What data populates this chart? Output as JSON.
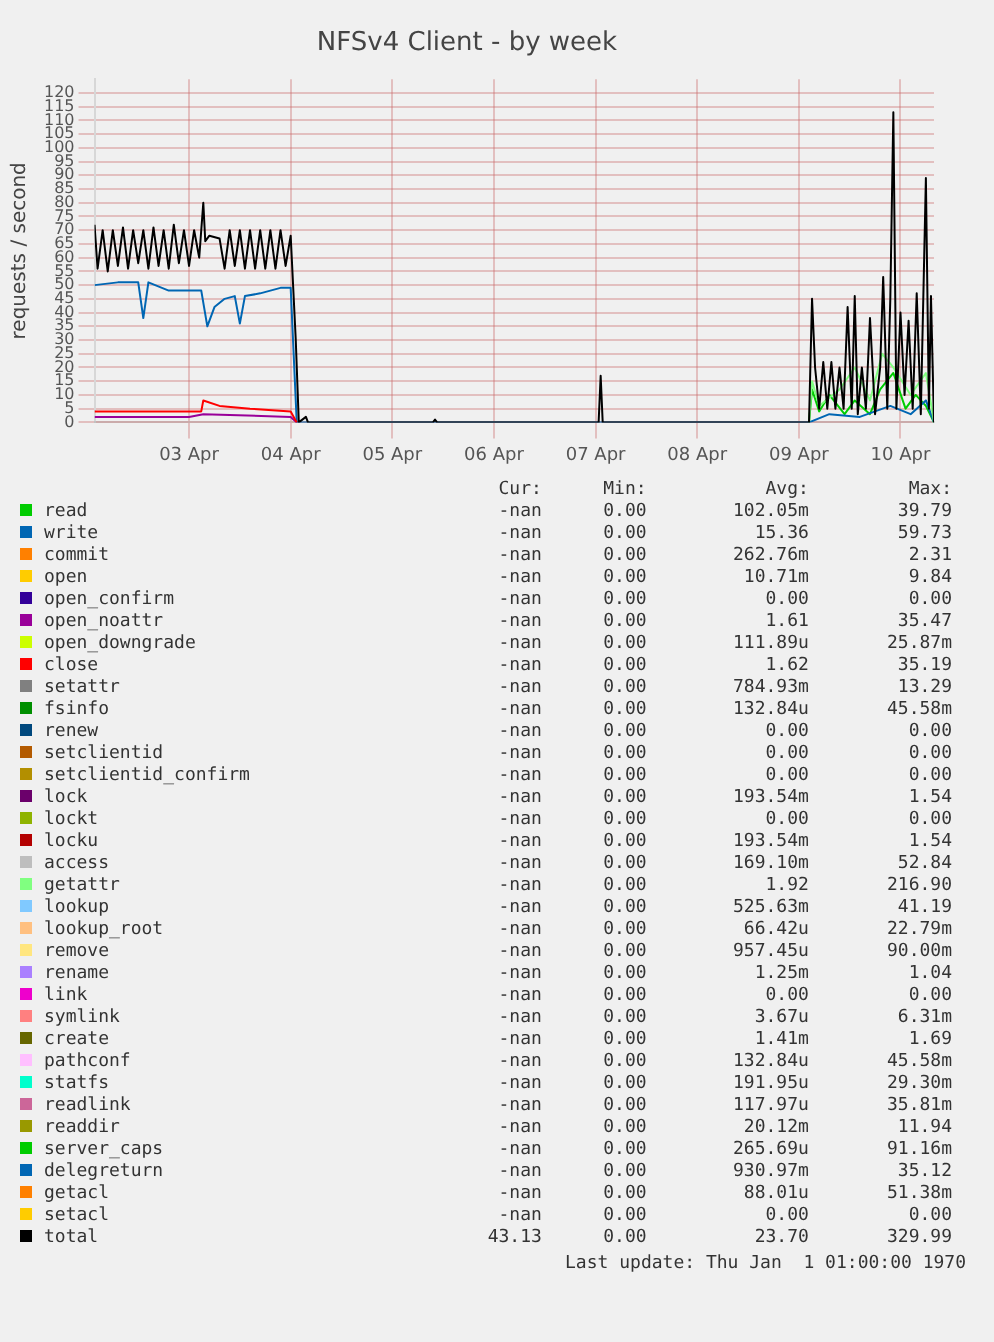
{
  "chart_data": {
    "type": "line",
    "title": "NFSv4 Client - by week",
    "ylabel": "requests / second",
    "xlim": [
      "--04-02T01:41",
      "--04-10T07:55"
    ],
    "xticks": [
      {
        "value": "--04-03",
        "label": "03 Apr"
      },
      {
        "value": "--04-04",
        "label": "04 Apr"
      },
      {
        "value": "--04-05",
        "label": "05 Apr"
      },
      {
        "value": "--04-06",
        "label": "06 Apr"
      },
      {
        "value": "--04-07",
        "label": "07 Apr"
      },
      {
        "value": "--04-08",
        "label": "08 Apr"
      },
      {
        "value": "--04-09",
        "label": "09 Apr"
      },
      {
        "value": "--04-10",
        "label": "10 Apr"
      }
    ],
    "ylim": [
      0,
      125
    ],
    "yticks": [
      0,
      5,
      10,
      15,
      20,
      25,
      30,
      35,
      40,
      45,
      50,
      55,
      60,
      65,
      70,
      75,
      80,
      85,
      90,
      95,
      100,
      105,
      110,
      115,
      120
    ],
    "grid": true,
    "legend": "bottom",
    "marker": "none",
    "line_style": "solid",
    "series": [
      {
        "name": "read",
        "color": "#00cc00",
        "x": [
          "--04-09T02:24",
          "--04-09T03:07",
          "--04-09T04:48",
          "--04-09T07:12",
          "--04-09T10:48",
          "--04-09T13:12",
          "--04-09T16:48",
          "--04-09T19:12",
          "--04-09T22:19",
          "--04-10T01:12",
          "--04-10T03:36",
          "--04-10T06:00",
          "--04-10T07:55"
        ],
        "values": [
          0,
          12,
          4,
          10,
          3,
          8,
          3,
          12,
          18,
          5,
          10,
          6,
          0
        ]
      },
      {
        "name": "write",
        "color": "#0066b3",
        "x": [
          "--04-02T01:41",
          "--04-02T07:12",
          "--04-02T12:00",
          "--04-02T13:12",
          "--04-02T14:24",
          "--04-02T19:12",
          "--04-03T00:00",
          "--04-03T02:53",
          "--04-03T04:19",
          "--04-03T06:00",
          "--04-03T08:24",
          "--04-03T10:48",
          "--04-03T12:00",
          "--04-03T13:12",
          "--04-03T16:48",
          "--04-03T21:36",
          "--04-04T00:00",
          "--04-04T01:26",
          "--04-09T02:24",
          "--04-09T07:12",
          "--04-09T14:24",
          "--04-09T21:36",
          "--04-10T02:24",
          "--04-10T06:00",
          "--04-10T07:55"
        ],
        "values": [
          50,
          51,
          51,
          38,
          51,
          48,
          48,
          48,
          35,
          42,
          45,
          46,
          36,
          46,
          47,
          49,
          49,
          0,
          0,
          3,
          2,
          6,
          3,
          8,
          0
        ]
      },
      {
        "name": "commit",
        "color": "#ff8000"
      },
      {
        "name": "open",
        "color": "#ffcc00"
      },
      {
        "name": "open_confirm",
        "color": "#330099"
      },
      {
        "name": "open_noattr",
        "color": "#990099",
        "x": [
          "--04-02T01:41",
          "--04-03T00:00",
          "--04-03T03:22",
          "--04-04T00:00",
          "--04-04T01:26"
        ],
        "values": [
          2,
          2,
          3,
          2,
          0
        ]
      },
      {
        "name": "open_downgrade",
        "color": "#ccff00"
      },
      {
        "name": "close",
        "color": "#ff0000",
        "x": [
          "--04-02T01:41",
          "--04-02T12:00",
          "--04-03T00:00",
          "--04-03T02:53",
          "--04-03T03:22",
          "--04-03T07:12",
          "--04-03T14:24",
          "--04-04T00:00",
          "--04-04T01:26"
        ],
        "values": [
          4,
          4,
          4,
          4,
          8,
          6,
          5,
          4,
          0
        ]
      },
      {
        "name": "setattr",
        "color": "#808080"
      },
      {
        "name": "fsinfo",
        "color": "#008f00"
      },
      {
        "name": "renew",
        "color": "#00487d"
      },
      {
        "name": "setclientid",
        "color": "#b35a00"
      },
      {
        "name": "setclientid_confirm",
        "color": "#b38f00"
      },
      {
        "name": "lock",
        "color": "#6b006b"
      },
      {
        "name": "lockt",
        "color": "#8fb300"
      },
      {
        "name": "locku",
        "color": "#b30000"
      },
      {
        "name": "access",
        "color": "#bebebe"
      },
      {
        "name": "getattr",
        "color": "#80ff80",
        "x": [
          "--04-09T02:24",
          "--04-09T03:07",
          "--04-09T04:48",
          "--04-09T09:36",
          "--04-09T13:12",
          "--04-09T16:48",
          "--04-09T19:41",
          "--04-09T22:19",
          "--04-10T02:24",
          "--04-10T06:00",
          "--04-10T07:55"
        ],
        "values": [
          0,
          15,
          6,
          12,
          20,
          8,
          25,
          20,
          10,
          18,
          0
        ]
      },
      {
        "name": "lookup",
        "color": "#80c9ff"
      },
      {
        "name": "lookup_root",
        "color": "#ffc080"
      },
      {
        "name": "remove",
        "color": "#ffe680"
      },
      {
        "name": "rename",
        "color": "#aa80ff"
      },
      {
        "name": "link",
        "color": "#ee00cc"
      },
      {
        "name": "symlink",
        "color": "#ff8080"
      },
      {
        "name": "create",
        "color": "#666600"
      },
      {
        "name": "pathconf",
        "color": "#ffbfff"
      },
      {
        "name": "statfs",
        "color": "#00ffcc"
      },
      {
        "name": "readlink",
        "color": "#cc6699"
      },
      {
        "name": "readdir",
        "color": "#999900"
      },
      {
        "name": "server_caps",
        "color": "#00cc00"
      },
      {
        "name": "delegreturn",
        "color": "#0066b3"
      },
      {
        "name": "getacl",
        "color": "#ff8000"
      },
      {
        "name": "setacl",
        "color": "#ffcc00"
      },
      {
        "name": "total",
        "color": "#000000",
        "x": [
          "--04-02T01:41",
          "--04-02T02:24",
          "--04-02T03:36",
          "--04-02T04:48",
          "--04-02T06:00",
          "--04-02T07:12",
          "--04-02T08:24",
          "--04-02T09:36",
          "--04-02T10:48",
          "--04-02T12:00",
          "--04-02T13:12",
          "--04-02T14:24",
          "--04-02T15:36",
          "--04-02T16:48",
          "--04-02T18:00",
          "--04-02T19:12",
          "--04-02T20:24",
          "--04-02T21:36",
          "--04-02T22:48",
          "--04-03T00:00",
          "--04-03T01:12",
          "--04-03T02:24",
          "--04-03T03:22",
          "--04-03T03:50",
          "--04-03T04:48",
          "--04-03T07:12",
          "--04-03T08:24",
          "--04-03T09:36",
          "--04-03T10:48",
          "--04-03T12:00",
          "--04-03T13:12",
          "--04-03T14:24",
          "--04-03T15:36",
          "--04-03T16:48",
          "--04-03T18:00",
          "--04-03T19:12",
          "--04-03T20:24",
          "--04-03T21:36",
          "--04-03T22:48",
          "--04-04T00:00",
          "--04-04T01:12",
          "--04-04T01:55",
          "--04-04T03:36",
          "--04-04T04:05",
          "--04-05T09:36",
          "--04-05T10:05",
          "--04-05T10:34",
          "--04-07T00:43",
          "--04-07T01:12",
          "--04-07T01:41",
          "--04-09T02:24",
          "--04-09T03:07",
          "--04-09T03:50",
          "--04-09T04:48",
          "--04-09T05:46",
          "--04-09T06:43",
          "--04-09T07:41",
          "--04-09T08:38",
          "--04-09T09:36",
          "--04-09T10:34",
          "--04-09T11:31",
          "--04-09T12:29",
          "--04-09T13:12",
          "--04-09T13:55",
          "--04-09T14:53",
          "--04-09T15:50",
          "--04-09T16:48",
          "--04-09T18:00",
          "--04-09T19:12",
          "--04-09T19:55",
          "--04-09T20:53",
          "--04-09T21:36",
          "--04-09T22:19",
          "--04-09T23:02",
          "--04-10T00:00",
          "--04-10T00:58",
          "--04-10T01:55",
          "--04-10T02:53",
          "--04-10T03:50",
          "--04-10T04:48",
          "--04-10T06:00",
          "--04-10T06:43",
          "--04-10T07:12",
          "--04-10T07:55"
        ],
        "values": [
          72,
          56,
          70,
          55,
          70,
          57,
          71,
          56,
          70,
          58,
          70,
          56,
          71,
          57,
          70,
          56,
          72,
          58,
          70,
          57,
          70,
          60,
          80,
          66,
          68,
          67,
          56,
          70,
          57,
          70,
          56,
          70,
          56,
          70,
          56,
          70,
          56,
          70,
          57,
          68,
          30,
          0,
          2,
          0,
          0,
          1,
          0,
          0,
          17,
          0,
          0,
          45,
          20,
          5,
          22,
          5,
          22,
          5,
          20,
          5,
          42,
          5,
          46,
          3,
          20,
          5,
          38,
          3,
          20,
          53,
          5,
          45,
          113,
          5,
          40,
          10,
          37,
          5,
          47,
          3,
          89,
          5,
          46,
          0
        ]
      }
    ],
    "annotations": [
      "Cur:",
      "Min:",
      "Avg:",
      "Max:",
      "-nan",
      "0.00",
      "102.05m",
      "39.79",
      "-nan",
      "0.00",
      "15.36",
      "59.73",
      "-nan",
      "0.00",
      "262.76m",
      "2.31",
      "-nan",
      "0.00",
      "10.71m",
      "9.84",
      "-nan",
      "0.00",
      "0.00",
      "0.00",
      "-nan",
      "0.00",
      "1.61",
      "35.47",
      "-nan",
      "0.00",
      "111.89u",
      "25.87m",
      "-nan",
      "0.00",
      "1.62",
      "35.19",
      "-nan",
      "0.00",
      "784.93m",
      "13.29",
      "-nan",
      "0.00",
      "132.84u",
      "45.58m",
      "-nan",
      "0.00",
      "0.00",
      "0.00",
      "-nan",
      "0.00",
      "0.00",
      "0.00",
      "-nan",
      "0.00",
      "0.00",
      "0.00",
      "-nan",
      "0.00",
      "193.54m",
      "1.54",
      "-nan",
      "0.00",
      "0.00",
      "0.00",
      "-nan",
      "0.00",
      "193.54m",
      "1.54",
      "-nan",
      "0.00",
      "169.10m",
      "52.84",
      "-nan",
      "0.00",
      "1.92",
      "216.90",
      "-nan",
      "0.00",
      "525.63m",
      "41.19",
      "-nan",
      "0.00",
      "66.42u",
      "22.79m",
      "-nan",
      "0.00",
      "957.45u",
      "90.00m",
      "-nan",
      "0.00",
      "1.25m",
      "1.04",
      "-nan",
      "0.00",
      "0.00",
      "0.00",
      "-nan",
      "0.00",
      "3.67u",
      "6.31m",
      "-nan",
      "0.00",
      "1.41m",
      "1.69",
      "-nan",
      "0.00",
      "132.84u",
      "45.58m",
      "-nan",
      "0.00",
      "191.95u",
      "29.30m",
      "-nan",
      "0.00",
      "117.97u",
      "35.81m",
      "-nan",
      "0.00",
      "20.12m",
      "11.94",
      "-nan",
      "0.00",
      "265.69u",
      "91.16m",
      "-nan",
      "0.00",
      "930.97m",
      "35.12",
      "-nan",
      "0.00",
      "88.01u",
      "51.38m",
      "-nan",
      "0.00",
      "0.00",
      "0.00",
      "43.13",
      "0.00",
      "23.70",
      "329.99",
      "Last update: Thu Jan  1 01:00:00 1970"
    ]
  }
}
